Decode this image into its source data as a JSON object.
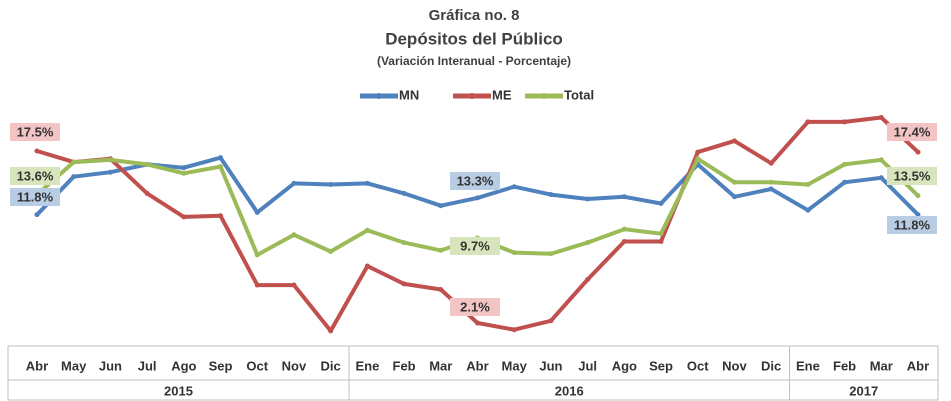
{
  "chart_data": {
    "type": "line",
    "title": "Gráfica no. 8",
    "subtitle": "Depósitos del Público",
    "note": "(Variación Interanual - Porcentaje)",
    "category_groups": [
      {
        "label": "2015",
        "categories": [
          "Abr",
          "May",
          "Jun",
          "Jul",
          "Ago",
          "Sep",
          "Oct",
          "Nov",
          "Dic"
        ]
      },
      {
        "label": "2016",
        "categories": [
          "Ene",
          "Feb",
          "Mar",
          "Abr",
          "May",
          "Jun",
          "Jul",
          "Ago",
          "Sep",
          "Oct",
          "Nov",
          "Dic"
        ]
      },
      {
        "label": "2017",
        "categories": [
          "Ene",
          "Feb",
          "Mar",
          "Abr"
        ]
      }
    ],
    "ylim": [
      0,
      22
    ],
    "legend": "top",
    "series": [
      {
        "name": "MN",
        "color": "#4f81bd",
        "label_color": "#b8cce4",
        "values": [
          11.8,
          15.2,
          15.6,
          16.3,
          16.0,
          16.9,
          12.0,
          14.6,
          14.5,
          14.6,
          13.7,
          12.6,
          13.3,
          14.3,
          13.6,
          13.2,
          13.4,
          12.8,
          16.3,
          13.4,
          14.1,
          12.2,
          14.7,
          15.1,
          11.8
        ],
        "value_labels": [
          "11.8%",
          null,
          null,
          null,
          null,
          null,
          null,
          null,
          null,
          null,
          null,
          null,
          "13.3%",
          null,
          null,
          null,
          null,
          null,
          null,
          null,
          null,
          null,
          null,
          null,
          "11.8%"
        ]
      },
      {
        "name": "ME",
        "color": "#c0504d",
        "label_color": "#f2c4c4",
        "values": [
          17.5,
          16.5,
          16.8,
          13.7,
          11.6,
          11.7,
          5.5,
          5.5,
          1.4,
          7.2,
          5.6,
          5.1,
          2.1,
          1.5,
          2.3,
          6.0,
          9.4,
          9.4,
          17.4,
          18.4,
          16.4,
          20.1,
          20.1,
          20.5,
          17.4
        ],
        "value_labels": [
          "17.5%",
          null,
          null,
          null,
          null,
          null,
          null,
          null,
          null,
          null,
          null,
          null,
          "2.1%",
          null,
          null,
          null,
          null,
          null,
          null,
          null,
          null,
          null,
          null,
          null,
          "17.4%"
        ]
      },
      {
        "name": "Total",
        "color": "#9bbb59",
        "label_color": "#d7e4bc",
        "values": [
          13.6,
          16.5,
          16.7,
          16.3,
          15.5,
          16.1,
          8.2,
          10.0,
          8.5,
          10.4,
          9.3,
          8.6,
          9.7,
          8.4,
          8.3,
          9.3,
          10.5,
          10.1,
          16.8,
          14.7,
          14.7,
          14.5,
          16.3,
          16.7,
          13.5
        ],
        "value_labels": [
          "13.6%",
          null,
          null,
          null,
          null,
          null,
          null,
          null,
          null,
          null,
          null,
          null,
          "9.7%",
          null,
          null,
          null,
          null,
          null,
          null,
          null,
          null,
          null,
          null,
          null,
          "13.5%"
        ]
      }
    ]
  }
}
